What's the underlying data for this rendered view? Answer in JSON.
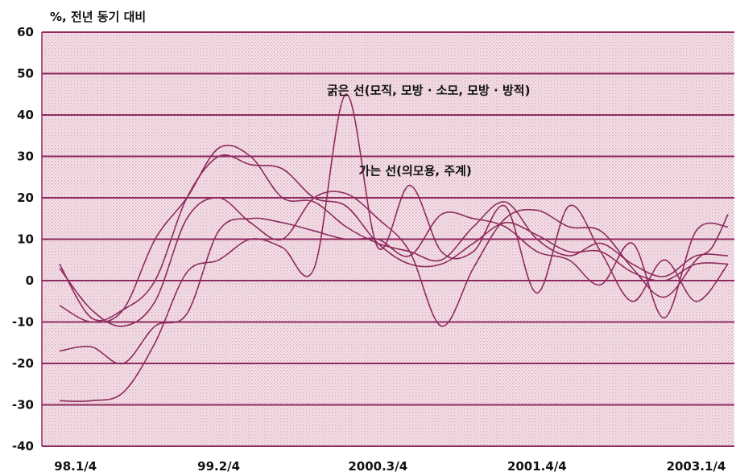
{
  "chart_data": {
    "type": "line",
    "ylabel": "%, 전년 동기 대비",
    "ylim": [
      -40,
      60
    ],
    "yticks": [
      60,
      50,
      40,
      30,
      20,
      10,
      0,
      -10,
      -20,
      -30,
      -40
    ],
    "xtick_labels": [
      "98.1/4",
      "99.2/4",
      "2000.3/4",
      "2001.4/4",
      "2003.1/4"
    ],
    "x_range": [
      0,
      21
    ],
    "xtick_positions": [
      0.5,
      5,
      10,
      15,
      20
    ],
    "grid": true,
    "colors": {
      "background": "#f3dfe6",
      "line": "#8e2a5e",
      "grid": "#8e2a5e"
    },
    "annotations": [
      {
        "text": "굵은 선(모직, 모방 · 소모, 모방 · 방적)",
        "x": 8.4,
        "y": 45
      },
      {
        "text": "가는 선(의모용, 주계)",
        "x": 9.4,
        "y": 25.5
      }
    ],
    "series": [
      {
        "values": [
          [
            0,
            3
          ],
          [
            1,
            -7
          ],
          [
            2,
            -11
          ],
          [
            3,
            -5
          ],
          [
            4,
            15
          ],
          [
            5,
            20
          ],
          [
            6,
            14
          ],
          [
            7,
            10
          ],
          [
            8,
            20
          ],
          [
            9,
            21
          ],
          [
            10,
            15
          ],
          [
            11,
            7
          ],
          [
            12,
            -11
          ],
          [
            13,
            3
          ],
          [
            14,
            15
          ],
          [
            15,
            17
          ],
          [
            16,
            13
          ],
          [
            17,
            12
          ],
          [
            18,
            3
          ],
          [
            19,
            -4
          ],
          [
            20,
            5
          ],
          [
            20.5,
            8
          ],
          [
            21,
            16
          ]
        ]
      },
      {
        "values": [
          [
            0,
            4
          ],
          [
            1,
            -9
          ],
          [
            2,
            -7
          ],
          [
            3,
            0
          ],
          [
            4,
            20
          ],
          [
            5,
            30
          ],
          [
            6,
            28
          ],
          [
            7,
            27
          ],
          [
            8,
            20
          ],
          [
            9,
            18
          ],
          [
            10,
            9
          ],
          [
            11,
            4
          ],
          [
            12,
            4
          ],
          [
            13,
            9
          ],
          [
            14,
            14
          ],
          [
            15,
            11
          ],
          [
            16,
            7
          ],
          [
            17,
            7
          ],
          [
            18,
            2
          ],
          [
            19,
            0
          ],
          [
            20,
            4
          ],
          [
            21,
            4
          ]
        ]
      },
      {
        "values": [
          [
            0,
            -6
          ],
          [
            1,
            -10
          ],
          [
            2,
            -7
          ],
          [
            3,
            10
          ],
          [
            4,
            20
          ],
          [
            5,
            32
          ],
          [
            6,
            30
          ],
          [
            7,
            20
          ],
          [
            8,
            19
          ],
          [
            9,
            13
          ],
          [
            10,
            9
          ],
          [
            11,
            7
          ],
          [
            12,
            5
          ],
          [
            13,
            13
          ],
          [
            14,
            19
          ],
          [
            15,
            10
          ],
          [
            16,
            6
          ],
          [
            17,
            9
          ],
          [
            18,
            4
          ],
          [
            19,
            1
          ],
          [
            20,
            6
          ],
          [
            21,
            6
          ]
        ]
      },
      {
        "values": [
          [
            0,
            -17
          ],
          [
            1,
            -16
          ],
          [
            2,
            -20
          ],
          [
            3,
            -11
          ],
          [
            4,
            -8
          ],
          [
            5,
            12
          ],
          [
            6,
            15
          ],
          [
            7,
            14
          ],
          [
            8,
            12
          ],
          [
            9,
            10
          ],
          [
            10,
            10
          ],
          [
            11,
            6
          ],
          [
            12,
            16
          ],
          [
            13,
            15
          ],
          [
            14,
            13
          ],
          [
            15,
            7
          ],
          [
            16,
            5
          ],
          [
            17,
            -1
          ],
          [
            18,
            9
          ],
          [
            19,
            -9
          ],
          [
            20,
            12
          ],
          [
            21,
            13
          ]
        ]
      },
      {
        "values": [
          [
            0,
            -29
          ],
          [
            1,
            -29
          ],
          [
            2,
            -27
          ],
          [
            3,
            -15
          ],
          [
            4,
            2
          ],
          [
            5,
            5
          ],
          [
            6,
            10
          ],
          [
            7,
            8
          ],
          [
            8,
            3
          ],
          [
            9,
            45
          ],
          [
            10,
            8
          ],
          [
            11,
            23
          ],
          [
            12,
            7
          ],
          [
            13,
            7
          ],
          [
            14,
            18
          ],
          [
            15,
            -3
          ],
          [
            16,
            18
          ],
          [
            17,
            7
          ],
          [
            18,
            -5
          ],
          [
            19,
            5
          ],
          [
            20,
            -5
          ],
          [
            21,
            4
          ]
        ]
      }
    ]
  }
}
